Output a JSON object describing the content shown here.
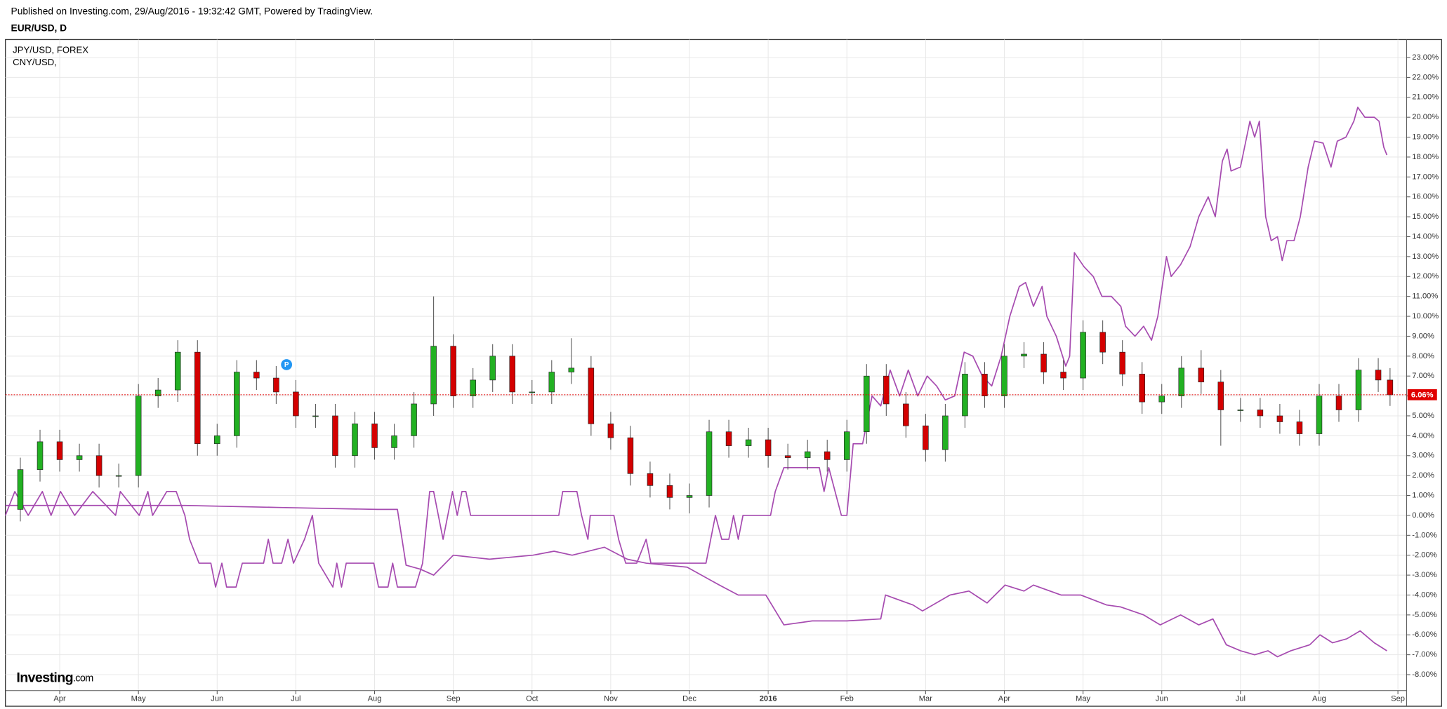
{
  "header": {
    "published": "Published on Investing.com, 29/Aug/2016 - 19:32:42 GMT, Powered by TradingView.",
    "logo": "Investing",
    "logo_suffix": ".com"
  },
  "chart_data": {
    "type": "candlestick",
    "title": "EUR/USD, D",
    "marker_label": "P",
    "up_color": "#22b122",
    "down_color": "#d40000",
    "last_label": "6.06%",
    "last_color": "#e00000",
    "grid": true,
    "xlim": [
      0.31,
      18.11
    ],
    "ylim": [
      -8.8,
      23.9
    ],
    "xticks": [
      {
        "value": 1,
        "label": "Apr"
      },
      {
        "value": 2,
        "label": "May"
      },
      {
        "value": 3,
        "label": "Jun"
      },
      {
        "value": 4,
        "label": "Jul"
      },
      {
        "value": 5,
        "label": "Aug"
      },
      {
        "value": 6,
        "label": "Sep"
      },
      {
        "value": 7,
        "label": "Oct"
      },
      {
        "value": 8,
        "label": "Nov"
      },
      {
        "value": 9,
        "label": "Dec"
      },
      {
        "value": 10,
        "label": "2016"
      },
      {
        "value": 11,
        "label": "Feb"
      },
      {
        "value": 12,
        "label": "Mar"
      },
      {
        "value": 13,
        "label": "Apr"
      },
      {
        "value": 14,
        "label": "May"
      },
      {
        "value": 15,
        "label": "Jun"
      },
      {
        "value": 16,
        "label": "Jul"
      },
      {
        "value": 17,
        "label": "Aug"
      },
      {
        "value": 18,
        "label": "Sep"
      }
    ],
    "yticks": [
      {
        "value": 23,
        "label": "23.00%"
      },
      {
        "value": 22,
        "label": "22.00%"
      },
      {
        "value": 21,
        "label": "21.00%"
      },
      {
        "value": 20,
        "label": "20.00%"
      },
      {
        "value": 19,
        "label": "19.00%"
      },
      {
        "value": 18,
        "label": "18.00%"
      },
      {
        "value": 17,
        "label": "17.00%"
      },
      {
        "value": 16,
        "label": "16.00%"
      },
      {
        "value": 15,
        "label": "15.00%"
      },
      {
        "value": 14,
        "label": "14.00%"
      },
      {
        "value": 13,
        "label": "13.00%"
      },
      {
        "value": 12,
        "label": "12.00%"
      },
      {
        "value": 11,
        "label": "11.00%"
      },
      {
        "value": 10,
        "label": "10.00%"
      },
      {
        "value": 9,
        "label": "9.00%"
      },
      {
        "value": 8,
        "label": "8.00%"
      },
      {
        "value": 7,
        "label": "7.00%"
      },
      {
        "value": 6,
        "label": "6.00%"
      },
      {
        "value": 5,
        "label": "5.00%"
      },
      {
        "value": 4,
        "label": "4.00%"
      },
      {
        "value": 3,
        "label": "3.00%"
      },
      {
        "value": 2,
        "label": "2.00%"
      },
      {
        "value": 1,
        "label": "1.00%"
      },
      {
        "value": 0,
        "label": "0.00%"
      },
      {
        "value": -1,
        "label": "-1.00%"
      },
      {
        "value": -2,
        "label": "-2.00%"
      },
      {
        "value": -3,
        "label": "-3.00%"
      },
      {
        "value": -4,
        "label": "-4.00%"
      },
      {
        "value": -5,
        "label": "-5.00%"
      },
      {
        "value": -6,
        "label": "-6.00%"
      },
      {
        "value": -7,
        "label": "-7.00%"
      },
      {
        "value": -8,
        "label": "-8.00%"
      }
    ],
    "x": [
      0.5,
      0.75,
      1.0,
      1.25,
      1.5,
      1.75,
      2.0,
      2.25,
      2.5,
      2.75,
      3.0,
      3.25,
      3.5,
      3.75,
      4.0,
      4.25,
      4.5,
      4.75,
      5.0,
      5.25,
      5.5,
      5.75,
      6.0,
      6.25,
      6.5,
      6.75,
      7.0,
      7.25,
      7.5,
      7.75,
      8.0,
      8.25,
      8.5,
      8.75,
      9.0,
      9.25,
      9.5,
      9.75,
      10.0,
      10.25,
      10.5,
      10.75,
      11.0,
      11.25,
      11.5,
      11.75,
      12.0,
      12.25,
      12.5,
      12.75,
      13.0,
      13.25,
      13.5,
      13.75,
      14.0,
      14.25,
      14.5,
      14.75,
      15.0,
      15.25,
      15.5,
      15.75,
      16.0,
      16.25,
      16.5,
      16.75,
      17.0,
      17.25,
      17.5,
      17.75,
      17.9
    ],
    "open": [
      0.3,
      2.3,
      3.7,
      2.8,
      3.0,
      2.0,
      2.0,
      6.0,
      6.3,
      8.2,
      3.6,
      4.0,
      7.2,
      6.9,
      6.2,
      5.0,
      5.0,
      3.0,
      4.6,
      3.4,
      4.0,
      5.6,
      8.5,
      6.0,
      6.8,
      8.0,
      6.2,
      6.2,
      7.2,
      7.4,
      4.6,
      3.9,
      2.1,
      1.5,
      0.9,
      1.0,
      4.2,
      3.5,
      3.8,
      3.0,
      2.9,
      3.2,
      2.8,
      4.2,
      7.0,
      5.6,
      4.5,
      3.3,
      5.0,
      7.1,
      6.0,
      8.0,
      8.1,
      7.2,
      6.9,
      9.2,
      8.2,
      7.1,
      5.7,
      6.0,
      7.4,
      6.7,
      5.3,
      5.3,
      5.0,
      4.7,
      4.1,
      6.0,
      5.3,
      7.3,
      6.8
    ],
    "high": [
      2.9,
      4.3,
      4.3,
      3.6,
      3.6,
      2.6,
      6.6,
      6.9,
      8.8,
      8.8,
      4.6,
      7.8,
      7.8,
      7.5,
      6.8,
      5.6,
      5.6,
      5.2,
      5.2,
      4.6,
      6.2,
      11.0,
      9.1,
      7.4,
      8.6,
      8.6,
      6.8,
      7.8,
      8.9,
      8.0,
      5.2,
      4.5,
      2.7,
      2.1,
      1.6,
      4.8,
      4.8,
      4.4,
      4.4,
      3.6,
      3.8,
      3.8,
      4.8,
      7.6,
      7.6,
      6.2,
      5.1,
      5.6,
      7.7,
      7.7,
      8.6,
      8.7,
      8.7,
      7.8,
      9.8,
      9.8,
      8.8,
      7.7,
      6.6,
      8.0,
      8.3,
      7.3,
      5.9,
      5.9,
      5.6,
      5.3,
      6.6,
      6.6,
      7.9,
      7.9,
      7.4
    ],
    "low": [
      -0.3,
      1.7,
      2.2,
      2.2,
      1.4,
      1.4,
      1.4,
      5.4,
      5.7,
      3.0,
      3.0,
      3.4,
      6.3,
      5.6,
      4.4,
      4.4,
      2.4,
      2.4,
      2.8,
      2.8,
      3.4,
      5.0,
      5.4,
      5.4,
      6.2,
      5.6,
      5.6,
      5.6,
      6.6,
      4.0,
      3.3,
      1.5,
      0.9,
      0.3,
      0.1,
      0.4,
      2.9,
      2.9,
      2.4,
      2.3,
      2.3,
      2.2,
      2.2,
      3.6,
      5.0,
      3.9,
      2.7,
      2.7,
      4.4,
      5.4,
      5.4,
      7.4,
      6.6,
      6.3,
      6.3,
      7.6,
      6.5,
      5.1,
      5.1,
      5.4,
      6.1,
      3.5,
      4.7,
      4.4,
      4.1,
      3.5,
      3.5,
      4.7,
      4.7,
      6.2,
      5.5
    ],
    "close": [
      2.3,
      3.7,
      2.8,
      3.0,
      2.0,
      2.0,
      6.0,
      6.3,
      8.2,
      3.6,
      4.0,
      7.2,
      6.9,
      6.2,
      5.0,
      5.0,
      3.0,
      4.6,
      3.4,
      4.0,
      5.6,
      8.5,
      6.0,
      6.8,
      8.0,
      6.2,
      6.2,
      7.2,
      7.4,
      4.6,
      3.9,
      2.1,
      1.5,
      0.9,
      1.0,
      4.2,
      3.5,
      3.8,
      3.0,
      2.9,
      3.2,
      2.8,
      4.2,
      7.0,
      5.6,
      4.5,
      3.3,
      5.0,
      7.1,
      6.0,
      8.0,
      8.1,
      7.2,
      6.9,
      9.2,
      8.2,
      7.1,
      5.7,
      6.0,
      7.4,
      6.7,
      5.3,
      5.3,
      5.0,
      4.7,
      4.1,
      6.0,
      5.3,
      7.3,
      6.8,
      6.06
    ],
    "series": [
      {
        "name": "JPY/USD, FOREX",
        "color": "#a64bb0",
        "x": [
          0.31,
          0.43,
          0.6,
          0.78,
          0.89,
          1.01,
          1.19,
          1.42,
          1.71,
          1.77,
          2.01,
          2.12,
          2.18,
          2.36,
          2.48,
          2.59,
          2.65,
          2.77,
          2.92,
          2.98,
          3.06,
          3.12,
          3.24,
          3.32,
          3.59,
          3.65,
          3.71,
          3.82,
          3.9,
          3.97,
          4.11,
          4.21,
          4.29,
          4.47,
          4.52,
          4.58,
          4.64,
          4.99,
          5.05,
          5.17,
          5.23,
          5.29,
          5.52,
          5.61,
          5.7,
          5.75,
          5.87,
          5.99,
          6.05,
          6.11,
          6.16,
          6.22,
          7.34,
          7.39,
          7.57,
          7.63,
          7.71,
          7.74,
          8.04,
          8.1,
          8.19,
          8.33,
          8.45,
          8.51,
          9.21,
          9.27,
          9.33,
          9.41,
          9.5,
          9.56,
          9.62,
          9.68,
          10.03,
          10.09,
          10.2,
          10.65,
          10.71,
          10.77,
          10.85,
          10.93,
          11.0,
          11.08,
          11.2,
          11.32,
          11.43,
          11.55,
          11.67,
          11.78,
          11.9,
          12.02,
          12.14,
          12.25,
          12.37,
          12.49,
          12.6,
          12.72,
          12.84,
          12.96,
          13.07,
          13.19,
          13.27,
          13.37,
          13.48,
          13.54,
          13.66,
          13.78,
          13.83,
          13.89,
          14.01,
          14.13,
          14.24,
          14.36,
          14.48,
          14.54,
          14.66,
          14.77,
          14.87,
          14.95,
          15.06,
          15.12,
          15.24,
          15.36,
          15.47,
          15.59,
          15.68,
          15.77,
          15.83,
          15.88,
          16.0,
          16.12,
          16.18,
          16.24,
          16.32,
          16.39,
          16.47,
          16.53,
          16.59,
          16.68,
          16.76,
          16.86,
          16.94,
          17.05,
          17.15,
          17.23,
          17.34,
          17.44,
          17.49,
          17.58,
          17.7,
          17.76,
          17.82,
          17.86
        ],
        "values": [
          0.0,
          1.2,
          0.0,
          1.2,
          0.0,
          1.2,
          0.0,
          1.2,
          0.0,
          1.2,
          0.0,
          1.2,
          0.0,
          1.2,
          1.2,
          0.0,
          -1.2,
          -2.4,
          -2.4,
          -3.6,
          -2.4,
          -3.6,
          -3.6,
          -2.4,
          -2.4,
          -1.2,
          -2.4,
          -2.4,
          -1.2,
          -2.4,
          -1.2,
          0.0,
          -2.4,
          -3.6,
          -2.4,
          -3.6,
          -2.4,
          -2.4,
          -3.6,
          -3.6,
          -2.4,
          -3.6,
          -3.6,
          -2.4,
          1.2,
          1.2,
          -1.2,
          1.2,
          0.0,
          1.2,
          1.2,
          0.0,
          0.0,
          1.2,
          1.2,
          0.0,
          -1.2,
          0.0,
          0.0,
          -1.2,
          -2.4,
          -2.4,
          -1.2,
          -2.4,
          -2.4,
          -1.2,
          0.0,
          -1.2,
          -1.2,
          0.0,
          -1.2,
          0.0,
          0.0,
          1.2,
          2.4,
          2.4,
          1.2,
          2.4,
          1.2,
          0.0,
          0.0,
          3.6,
          3.6,
          6.0,
          5.5,
          7.3,
          6.0,
          7.3,
          6.0,
          7.0,
          6.5,
          5.8,
          6.0,
          8.2,
          8.0,
          7.0,
          6.5,
          8.0,
          10.0,
          11.5,
          11.7,
          10.5,
          11.5,
          10.0,
          9.0,
          7.5,
          8.0,
          13.2,
          12.5,
          12.0,
          11.0,
          11.0,
          10.5,
          9.5,
          9.0,
          9.5,
          8.8,
          10.0,
          13.0,
          12.0,
          12.6,
          13.5,
          15.0,
          16.0,
          15.0,
          17.8,
          18.4,
          17.3,
          17.5,
          19.8,
          19.0,
          19.8,
          15.0,
          13.8,
          14.0,
          12.8,
          13.8,
          13.8,
          15.0,
          17.5,
          18.8,
          18.7,
          17.5,
          18.8,
          19.0,
          19.8,
          20.5,
          20.0,
          20.0,
          19.8,
          18.5,
          18.1
        ]
      },
      {
        "name": "CNY/USD,",
        "color": "#a64bb0",
        "x": [
          0.31,
          1.42,
          2.59,
          3.76,
          5.04,
          5.29,
          5.4,
          5.58,
          5.75,
          6.0,
          6.46,
          7.01,
          7.28,
          7.51,
          7.92,
          8.21,
          8.45,
          8.97,
          9.38,
          9.62,
          9.97,
          10.2,
          10.56,
          11.0,
          11.43,
          11.49,
          11.84,
          11.96,
          12.31,
          12.55,
          12.78,
          13.01,
          13.25,
          13.37,
          13.72,
          13.97,
          14.3,
          14.48,
          14.77,
          14.98,
          15.24,
          15.47,
          15.65,
          15.82,
          16.0,
          16.18,
          16.35,
          16.47,
          16.64,
          16.88,
          17.01,
          17.17,
          17.35,
          17.52,
          17.7,
          17.86
        ],
        "values": [
          0.5,
          0.5,
          0.5,
          0.4,
          0.3,
          0.3,
          -2.5,
          -2.7,
          -3.0,
          -2.0,
          -2.2,
          -2.0,
          -1.8,
          -2.0,
          -1.6,
          -2.2,
          -2.4,
          -2.6,
          -3.5,
          -4.0,
          -4.0,
          -5.5,
          -5.3,
          -5.3,
          -5.2,
          -4.0,
          -4.5,
          -4.8,
          -4.0,
          -3.8,
          -4.4,
          -3.5,
          -3.8,
          -3.5,
          -4.0,
          -4.0,
          -4.5,
          -4.6,
          -5.0,
          -5.5,
          -5.0,
          -5.5,
          -5.2,
          -6.5,
          -6.8,
          -7.0,
          -6.8,
          -7.1,
          -6.8,
          -6.5,
          -6.0,
          -6.4,
          -6.2,
          -5.8,
          -6.4,
          -6.8
        ]
      }
    ]
  }
}
